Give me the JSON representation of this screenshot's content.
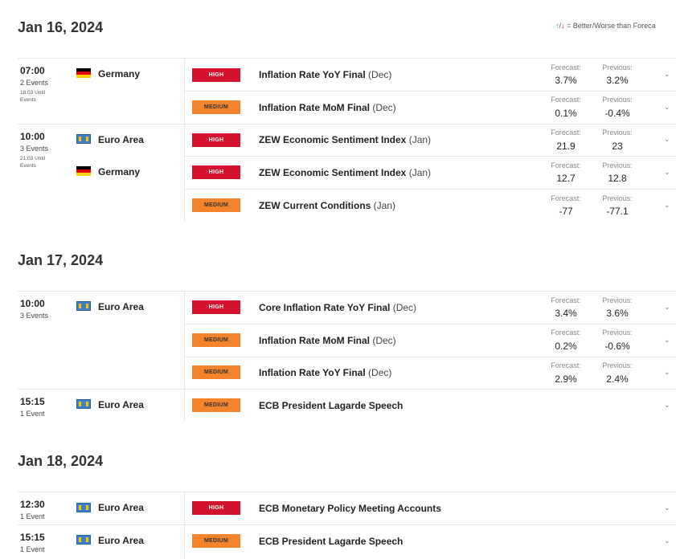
{
  "legend": {
    "up_icon": "↑",
    "sep": "/",
    "down_icon": "↓",
    "text": " = Better/Worse than Foreca"
  },
  "labels": {
    "forecast": "Forecast:",
    "previous": "Previous:",
    "chevron": "⌄"
  },
  "colors": {
    "high": "#d2122e",
    "medium": "#f3842c"
  },
  "days": [
    {
      "date": "Jan 16, 2024",
      "groups": [
        {
          "time": "07:00",
          "count": "2 Events",
          "until": "18:03 Until Events",
          "country": "Germany",
          "flag": "germany-flag",
          "events": [
            {
              "impact": "HIGH",
              "name": "Inflation Rate YoY Final",
              "period": "(Dec)",
              "forecast": "3.7%",
              "previous": "3.2%"
            },
            {
              "impact": "MEDIUM",
              "name": "Inflation Rate MoM Final",
              "period": "(Dec)",
              "forecast": "0.1%",
              "previous": "-0.4%"
            }
          ]
        },
        {
          "time": "10:00",
          "count": "3 Events",
          "until": "21:03 Until Events",
          "country": "Euro Area",
          "flag": "euro-area-flag",
          "events": [
            {
              "impact": "HIGH",
              "name": "ZEW Economic Sentiment Index",
              "period": "(Jan)",
              "forecast": "21.9",
              "previous": "23"
            }
          ]
        },
        {
          "country": "Germany",
          "flag": "germany-flag",
          "events": [
            {
              "impact": "HIGH",
              "name": "ZEW Economic Sentiment Index",
              "period": "(Jan)",
              "forecast": "12.7",
              "previous": "12.8"
            },
            {
              "impact": "MEDIUM",
              "name": "ZEW Current Conditions",
              "period": "(Jan)",
              "forecast": "-77",
              "previous": "-77.1"
            }
          ]
        }
      ]
    },
    {
      "date": "Jan 17, 2024",
      "groups": [
        {
          "time": "10:00",
          "count": "3 Events",
          "country": "Euro Area",
          "flag": "euro-area-flag",
          "events": [
            {
              "impact": "HIGH",
              "name": "Core Inflation Rate YoY Final",
              "period": "(Dec)",
              "forecast": "3.4%",
              "previous": "3.6%"
            },
            {
              "impact": "MEDIUM",
              "name": "Inflation Rate MoM Final",
              "period": "(Dec)",
              "forecast": "0.2%",
              "previous": "-0.6%"
            },
            {
              "impact": "MEDIUM",
              "name": "Inflation Rate YoY Final",
              "period": "(Dec)",
              "forecast": "2.9%",
              "previous": "2.4%"
            }
          ]
        },
        {
          "time": "15:15",
          "count": "1 Event",
          "country": "Euro Area",
          "flag": "euro-area-flag",
          "events": [
            {
              "impact": "MEDIUM",
              "name": "ECB President Lagarde Speech",
              "period": ""
            }
          ]
        }
      ]
    },
    {
      "date": "Jan 18, 2024",
      "groups": [
        {
          "time": "12:30",
          "count": "1 Event",
          "country": "Euro Area",
          "flag": "euro-area-flag",
          "events": [
            {
              "impact": "HIGH",
              "name": "ECB Monetary Policy Meeting Accounts",
              "period": ""
            }
          ]
        },
        {
          "time": "15:15",
          "count": "1 Event",
          "country": "Euro Area",
          "flag": "euro-area-flag",
          "events": [
            {
              "impact": "MEDIUM",
              "name": "ECB President Lagarde Speech",
              "period": ""
            }
          ]
        }
      ]
    }
  ]
}
